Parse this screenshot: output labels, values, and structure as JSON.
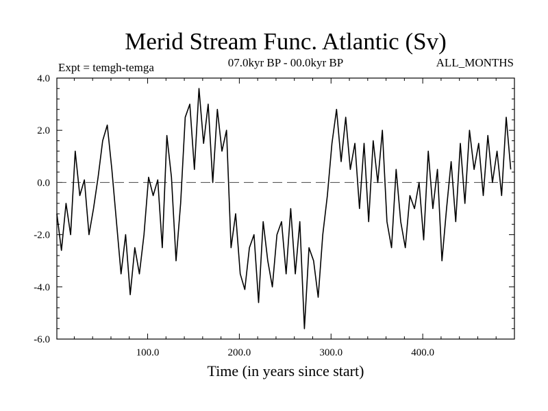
{
  "chart_data": {
    "type": "line",
    "title": "Merid Stream Func. Atlantic (Sv)",
    "subtitle": "07.0kyr BP - 00.0kyr BP",
    "annotation_left": "Expt = temgh-temga",
    "annotation_right": "ALL_MONTHS",
    "xlabel": "Time (in years since start)",
    "ylabel": "",
    "xlim": [
      1,
      500
    ],
    "ylim": [
      -6,
      4
    ],
    "xticks": [
      100,
      200,
      300,
      400
    ],
    "xtick_labels": [
      "100.0",
      "200.0",
      "300.0",
      "400.0"
    ],
    "yticks": [
      -6,
      -4,
      -2,
      0,
      2,
      4
    ],
    "ytick_labels": [
      "-6.0",
      "-4.0",
      "-2.0",
      "0.0",
      "2.0",
      "4.0"
    ],
    "reference_line": {
      "y": 0,
      "style": "dashed"
    },
    "series": [
      {
        "name": "Merid Stream Func. Atlantic",
        "x_step": 5,
        "x_start": 1,
        "values": [
          -1.2,
          -2.6,
          -0.8,
          -2.0,
          1.2,
          -0.5,
          0.1,
          -2.0,
          -1.0,
          0.2,
          1.6,
          2.2,
          0.5,
          -1.5,
          -3.5,
          -2.0,
          -4.3,
          -2.5,
          -3.5,
          -2.0,
          0.2,
          -0.5,
          0.1,
          -2.5,
          1.8,
          0.2,
          -3.0,
          -0.8,
          2.5,
          3.0,
          0.5,
          3.6,
          1.5,
          3.0,
          0.0,
          2.8,
          1.2,
          2.0,
          -2.5,
          -1.2,
          -3.5,
          -4.1,
          -2.5,
          -2.0,
          -4.6,
          -1.5,
          -3.0,
          -4.0,
          -2.0,
          -1.5,
          -3.5,
          -1.0,
          -3.5,
          -1.5,
          -5.6,
          -2.5,
          -3.0,
          -4.4,
          -2.0,
          -0.5,
          1.5,
          2.8,
          0.8,
          2.5,
          0.5,
          1.5,
          -1.0,
          1.5,
          -1.5,
          1.6,
          0.0,
          2.0,
          -1.5,
          -2.5,
          0.5,
          -1.5,
          -2.5,
          -0.5,
          -1.0,
          0.0,
          -2.2,
          1.2,
          -1.0,
          0.5,
          -3.0,
          -1.0,
          0.8,
          -1.5,
          1.5,
          -0.8,
          2.0,
          0.5,
          1.5,
          -0.5,
          1.8,
          0.0,
          1.2,
          -0.5,
          2.5,
          0.5
        ]
      }
    ]
  }
}
